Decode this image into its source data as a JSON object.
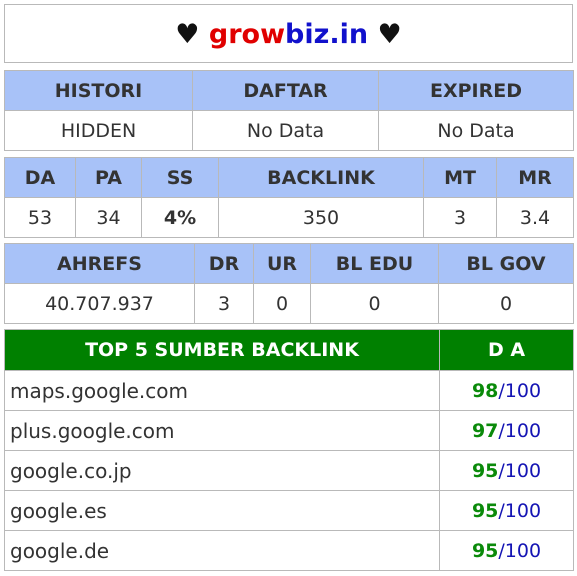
{
  "site": {
    "heart_left": "♥",
    "name_part1": "grow",
    "name_part2": "biz.in",
    "heart_right": "♥"
  },
  "table1": {
    "headers": [
      "HISTORI",
      "DAFTAR",
      "EXPIRED"
    ],
    "values": [
      "HIDDEN",
      "No Data",
      "No Data"
    ]
  },
  "table2": {
    "headers": [
      "DA",
      "PA",
      "SS",
      "BACKLINK",
      "MT",
      "MR"
    ],
    "values": [
      "53",
      "34",
      "4%",
      "350",
      "3",
      "3.4"
    ]
  },
  "table3": {
    "headers": [
      "AHREFS",
      "DR",
      "UR",
      "BL EDU",
      "BL GOV"
    ],
    "values": [
      "40.707.937",
      "3",
      "0",
      "0",
      "0"
    ]
  },
  "backlinks": {
    "header_source": "TOP 5 SUMBER BACKLINK",
    "header_da": "D A",
    "rows": [
      {
        "domain": "maps.google.com",
        "da": "98",
        "max": "/100"
      },
      {
        "domain": "plus.google.com",
        "da": "97",
        "max": "/100"
      },
      {
        "domain": "google.co.jp",
        "da": "95",
        "max": "/100"
      },
      {
        "domain": "google.es",
        "da": "95",
        "max": "/100"
      },
      {
        "domain": "google.de",
        "da": "95",
        "max": "/100"
      }
    ]
  },
  "colors": {
    "header_blue": "#a8c2f8",
    "header_green": "#008000",
    "value_green": "#0a8a0a",
    "value_blue": "#1414b4",
    "title_red": "#e00000",
    "title_blue": "#1111cc"
  }
}
